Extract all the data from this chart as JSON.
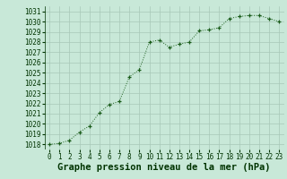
{
  "x": [
    0,
    1,
    2,
    3,
    4,
    5,
    6,
    7,
    8,
    9,
    10,
    11,
    12,
    13,
    14,
    15,
    16,
    17,
    18,
    19,
    20,
    21,
    22,
    23
  ],
  "y": [
    1018.0,
    1018.1,
    1018.4,
    1019.2,
    1019.8,
    1021.1,
    1021.9,
    1022.2,
    1024.6,
    1025.3,
    1028.0,
    1028.2,
    1027.5,
    1027.8,
    1028.0,
    1029.1,
    1029.2,
    1029.4,
    1030.3,
    1030.5,
    1030.6,
    1030.6,
    1030.3,
    1030.0
  ],
  "xlabel": "Graphe pression niveau de la mer (hPa)",
  "ylim_min": 1017.5,
  "ylim_max": 1031.5,
  "xlim_min": -0.5,
  "xlim_max": 23.5,
  "yticks": [
    1018,
    1019,
    1020,
    1021,
    1022,
    1023,
    1024,
    1025,
    1026,
    1027,
    1028,
    1029,
    1030,
    1031
  ],
  "xticks": [
    0,
    1,
    2,
    3,
    4,
    5,
    6,
    7,
    8,
    9,
    10,
    11,
    12,
    13,
    14,
    15,
    16,
    17,
    18,
    19,
    20,
    21,
    22,
    23
  ],
  "line_color": "#1a5c1a",
  "marker": "+",
  "bg_color": "#c8e8d8",
  "grid_color": "#a8c8b8",
  "xlabel_color": "#003300",
  "tick_color": "#003300",
  "tick_fontsize": 5.5,
  "xlabel_fontsize": 7.5
}
